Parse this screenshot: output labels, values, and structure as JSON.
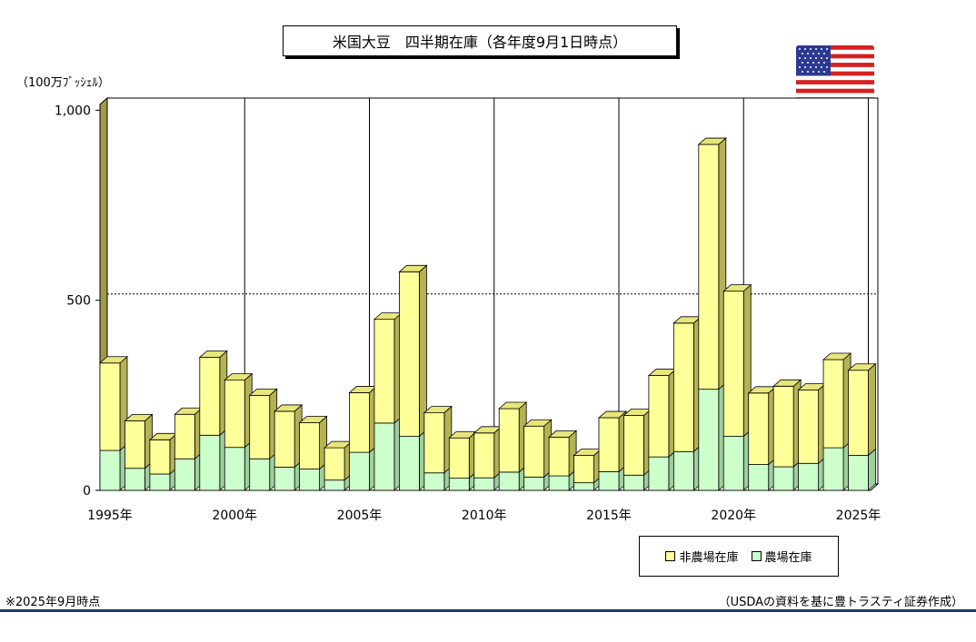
{
  "chart_data": {
    "type": "bar",
    "stacked": true,
    "title": "米国大豆　四半期在庫（各年度9月1日時点）",
    "ylabel": "（100万ﾌﾞｯｼｪﾙ）",
    "ylim": [
      0,
      1000
    ],
    "yticks": [
      "0",
      "500",
      "1,000"
    ],
    "xtick_labels": [
      {
        "label": "1995年",
        "year": 1995
      },
      {
        "label": "2000年",
        "year": 2000
      },
      {
        "label": "2005年",
        "year": 2005
      },
      {
        "label": "2010年",
        "year": 2010
      },
      {
        "label": "2015年",
        "year": 2015
      },
      {
        "label": "2020年",
        "year": 2020
      },
      {
        "label": "2025年",
        "year": 2025
      }
    ],
    "categories": [
      1995,
      1996,
      1997,
      1998,
      1999,
      2000,
      2001,
      2002,
      2003,
      2004,
      2005,
      2006,
      2007,
      2008,
      2009,
      2010,
      2011,
      2012,
      2013,
      2014,
      2015,
      2016,
      2017,
      2018,
      2019,
      2020,
      2021,
      2022,
      2023,
      2024,
      2025
    ],
    "series": [
      {
        "name": "農場在庫",
        "color": "#ccffcc",
        "values": [
          105,
          58,
          43,
          83,
          145,
          113,
          83,
          61,
          56,
          27,
          100,
          177,
          142,
          46,
          32,
          33,
          48,
          35,
          38,
          20,
          49,
          40,
          88,
          102,
          266,
          142,
          68,
          62,
          71,
          112,
          92
        ]
      },
      {
        "name": "非農場在庫",
        "color": "#ffff99",
        "values": [
          230,
          125,
          90,
          117,
          205,
          177,
          167,
          147,
          122,
          85,
          157,
          273,
          433,
          158,
          106,
          118,
          167,
          134,
          102,
          72,
          142,
          157,
          214,
          338,
          644,
          382,
          188,
          212,
          193,
          232,
          224
        ]
      }
    ],
    "gridline_value": 500
  },
  "legend": [
    {
      "label": "非農場在庫",
      "color": "#ffff99"
    },
    {
      "label": "農場在庫",
      "color": "#ccffcc"
    }
  ],
  "footnote": "※2025年9月時点",
  "source": "（USDAの資料を基に豊トラスティ証券作成）"
}
